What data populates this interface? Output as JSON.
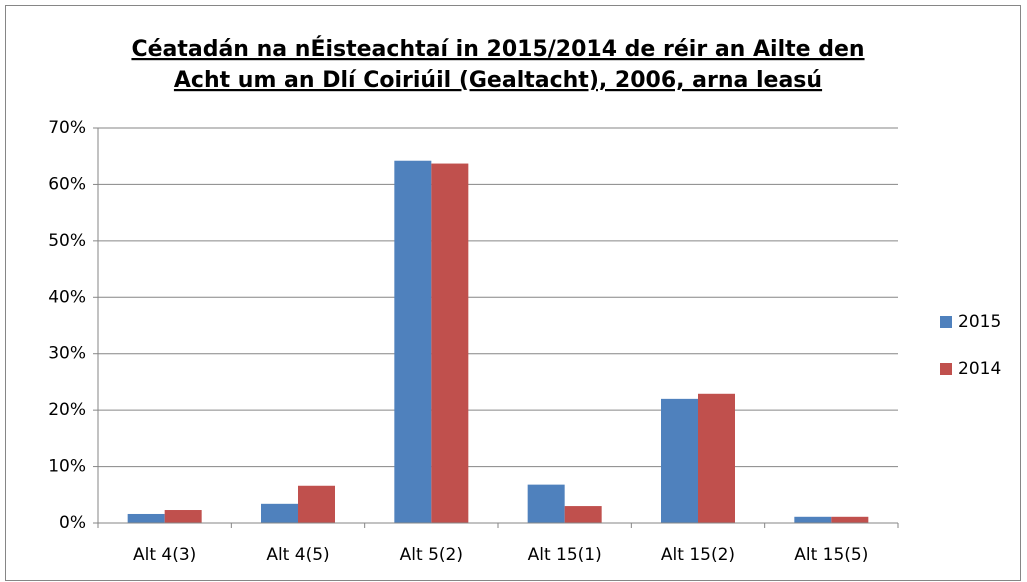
{
  "chart_data": {
    "type": "bar",
    "title": [
      "Céatadán na nÉisteachtaí in 2015/2014 de réir an Ailte den",
      "Acht um an Dlí Coiriúil (Gealtacht), 2006, arna leasú"
    ],
    "categories": [
      "Alt 4(3)",
      "Alt 4(5)",
      "Alt 5(2)",
      "Alt 15(1)",
      "Alt 15(2)",
      "Alt 15(5)"
    ],
    "series": [
      {
        "name": "2015",
        "color": "#4f81bd",
        "values": [
          1.6,
          3.4,
          64.2,
          6.8,
          22.0,
          1.1
        ]
      },
      {
        "name": "2014",
        "color": "#c0504d",
        "values": [
          2.3,
          6.6,
          63.7,
          3.0,
          22.9,
          1.1
        ]
      }
    ],
    "ylim": [
      0,
      70
    ],
    "yticks": [
      {
        "value": 0,
        "label": "0%"
      },
      {
        "value": 10,
        "label": "10%"
      },
      {
        "value": 20,
        "label": "20%"
      },
      {
        "value": 30,
        "label": "30%"
      },
      {
        "value": 40,
        "label": "40%"
      },
      {
        "value": 50,
        "label": "50%"
      },
      {
        "value": 60,
        "label": "60%"
      },
      {
        "value": 70,
        "label": "70%"
      }
    ],
    "grid": true,
    "legend": "right"
  }
}
